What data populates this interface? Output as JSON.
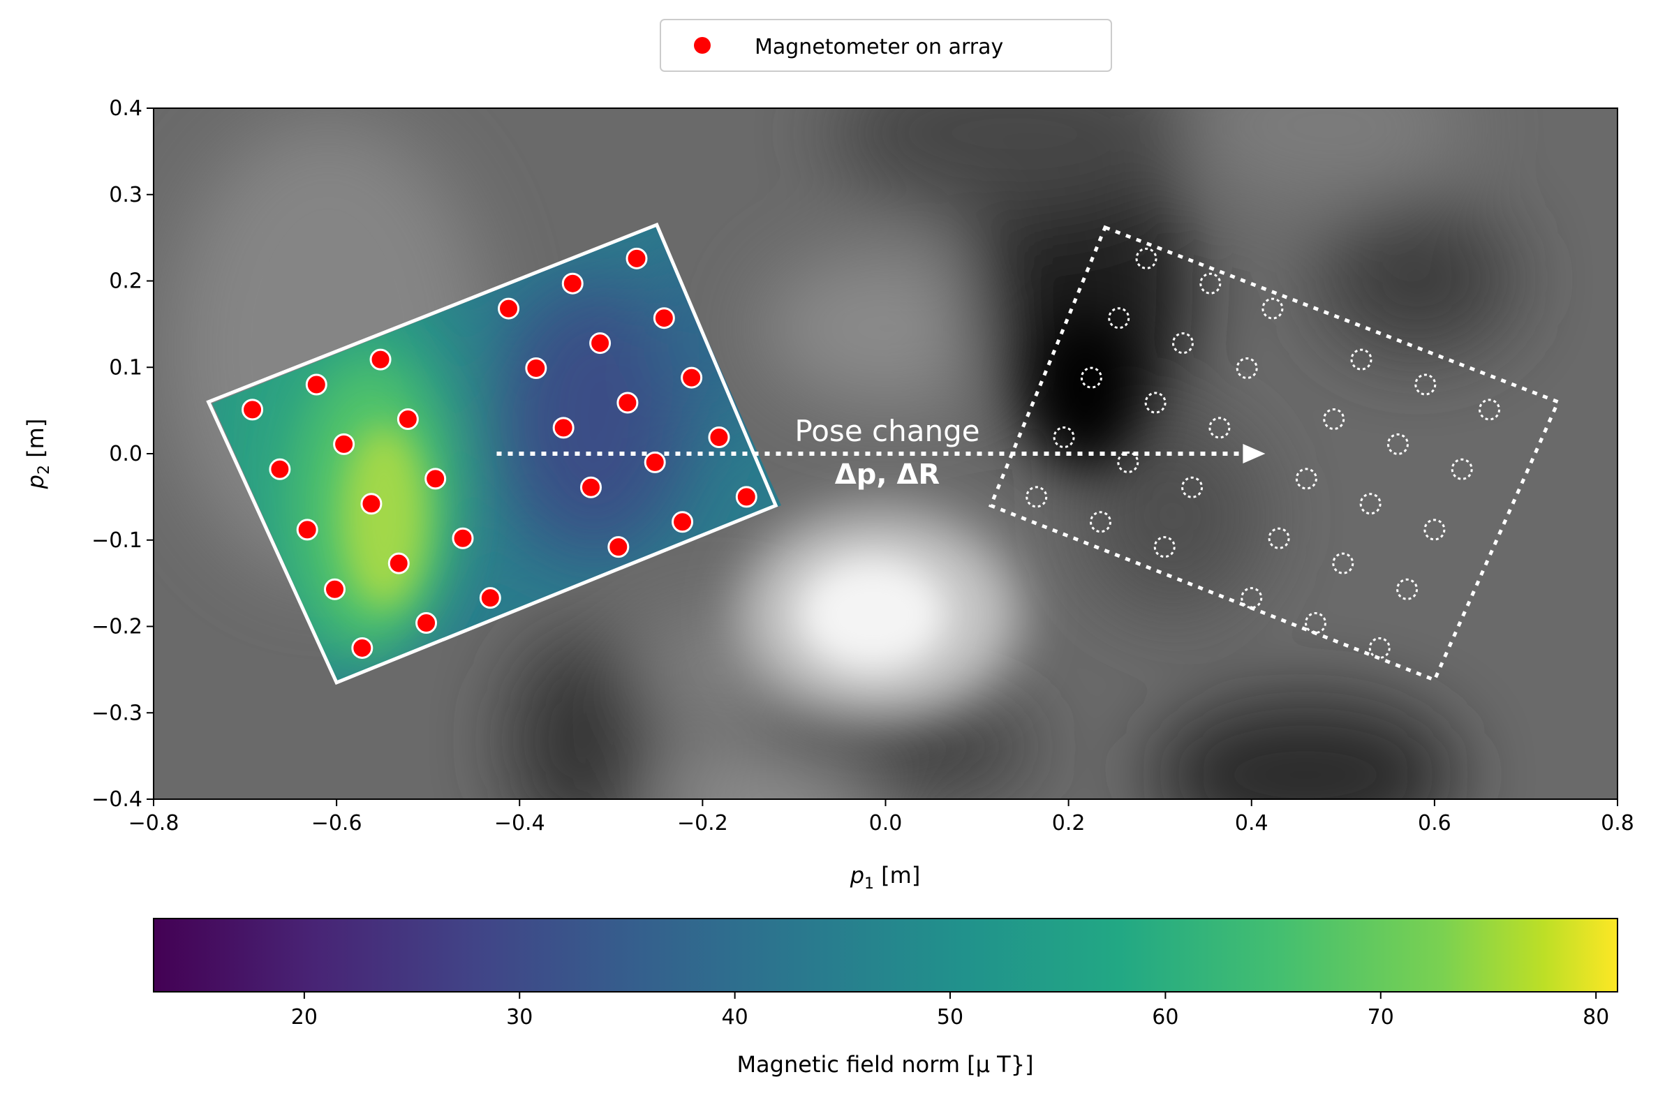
{
  "chart_data": {
    "type": "scatter",
    "title": "",
    "xlabel": "p1 [m]",
    "ylabel": "p2 [m]",
    "xlim": [
      -0.8,
      0.8
    ],
    "ylim": [
      -0.4,
      0.4
    ],
    "x_ticks": [
      "−0.8",
      "−0.6",
      "−0.4",
      "−0.2",
      "0.0",
      "0.2",
      "0.4",
      "0.6",
      "0.8"
    ],
    "y_ticks": [
      "0.4",
      "0.3",
      "0.2",
      "0.1",
      "0.0",
      "−0.1",
      "−0.2",
      "−0.3",
      "−0.4"
    ],
    "grid": false,
    "legend": {
      "position": "top-center",
      "entries": [
        "Magnetometer on array"
      ]
    },
    "series": [
      {
        "name": "Magnetometer on array",
        "color": "#ff0000",
        "points": [
          [
            -0.692,
            0.051
          ],
          [
            -0.622,
            0.08
          ],
          [
            -0.552,
            0.109
          ],
          [
            -0.662,
            -0.018
          ],
          [
            -0.592,
            0.011
          ],
          [
            -0.522,
            0.04
          ],
          [
            -0.632,
            -0.088
          ],
          [
            -0.562,
            -0.058
          ],
          [
            -0.492,
            -0.029
          ],
          [
            -0.602,
            -0.157
          ],
          [
            -0.532,
            -0.127
          ],
          [
            -0.462,
            -0.098
          ],
          [
            -0.572,
            -0.225
          ],
          [
            -0.502,
            -0.196
          ],
          [
            -0.432,
            -0.167
          ],
          [
            -0.412,
            0.168
          ],
          [
            -0.342,
            0.197
          ],
          [
            -0.272,
            0.226
          ],
          [
            -0.382,
            0.099
          ],
          [
            -0.312,
            0.128
          ],
          [
            -0.242,
            0.157
          ],
          [
            -0.352,
            0.03
          ],
          [
            -0.282,
            0.059
          ],
          [
            -0.212,
            0.088
          ],
          [
            -0.322,
            -0.039
          ],
          [
            -0.252,
            -0.01
          ],
          [
            -0.182,
            0.019
          ],
          [
            -0.292,
            -0.108
          ],
          [
            -0.222,
            -0.079
          ],
          [
            -0.152,
            -0.05
          ]
        ]
      }
    ],
    "array_outline": [
      [
        -0.74,
        0.06
      ],
      [
        -0.25,
        0.265
      ],
      [
        -0.12,
        -0.06
      ],
      [
        -0.6,
        -0.265
      ]
    ],
    "moved_array_outline": [
      [
        0.24,
        0.262
      ],
      [
        0.735,
        0.06
      ],
      [
        0.6,
        -0.262
      ],
      [
        0.115,
        -0.06
      ]
    ],
    "moved_magnetometers": [
      [
        0.285,
        0.226
      ],
      [
        0.355,
        0.197
      ],
      [
        0.423,
        0.168
      ],
      [
        0.255,
        0.157
      ],
      [
        0.325,
        0.128
      ],
      [
        0.395,
        0.099
      ],
      [
        0.225,
        0.088
      ],
      [
        0.295,
        0.059
      ],
      [
        0.365,
        0.03
      ],
      [
        0.195,
        0.019
      ],
      [
        0.265,
        -0.01
      ],
      [
        0.335,
        -0.039
      ],
      [
        0.165,
        -0.05
      ],
      [
        0.235,
        -0.079
      ],
      [
        0.305,
        -0.108
      ],
      [
        0.52,
        0.109
      ],
      [
        0.59,
        0.08
      ],
      [
        0.66,
        0.051
      ],
      [
        0.49,
        0.04
      ],
      [
        0.56,
        0.011
      ],
      [
        0.63,
        -0.018
      ],
      [
        0.46,
        -0.029
      ],
      [
        0.53,
        -0.058
      ],
      [
        0.6,
        -0.088
      ],
      [
        0.43,
        -0.098
      ],
      [
        0.5,
        -0.127
      ],
      [
        0.57,
        -0.157
      ],
      [
        0.4,
        -0.167
      ],
      [
        0.47,
        -0.196
      ],
      [
        0.54,
        -0.225
      ]
    ],
    "arrow": {
      "from": [
        -0.425,
        0.0
      ],
      "to": [
        0.415,
        0.0
      ]
    },
    "annotations": [
      "Pose change",
      "Δp, ΔR"
    ],
    "colorbar": {
      "label": "Magnetic field norm [μ T}]",
      "range": [
        13,
        81
      ],
      "ticks": [
        20,
        30,
        40,
        50,
        60,
        70,
        80
      ],
      "colormap": "viridis"
    }
  }
}
